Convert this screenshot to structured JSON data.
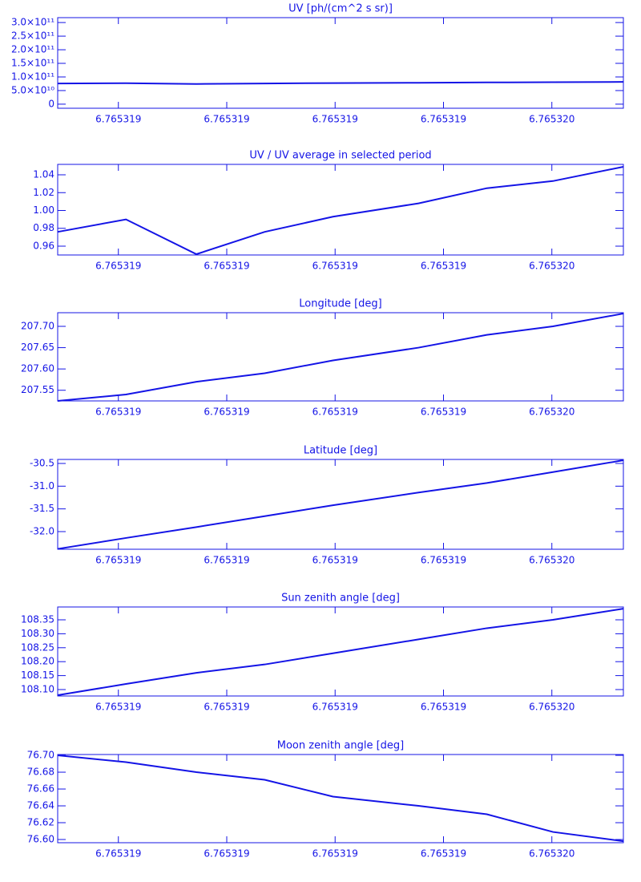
{
  "chart_data": [
    {
      "type": "line",
      "title": "UV [ph/(cm^2 s sr)]",
      "color": "#1414e6",
      "x": [
        6.765319044,
        6.765319107,
        6.765319172,
        6.765319235,
        6.765319298,
        6.765319377,
        6.76531944,
        6.765319501,
        6.765319566
      ],
      "values": [
        76100000000,
        77200000000,
        74200000000,
        76100000000,
        77500000000,
        78600000000,
        80000000000,
        80600000000,
        81800000000
      ],
      "xlim": [
        6.765319044,
        6.765319566
      ],
      "xticks": [
        {
          "value": 6.7653191,
          "label": "6.765319"
        },
        {
          "value": 6.7653192,
          "label": "6.765319"
        },
        {
          "value": 6.7653193,
          "label": "6.765319"
        },
        {
          "value": 6.7653194,
          "label": "6.765319"
        },
        {
          "value": 6.7653195,
          "label": "6.765320"
        }
      ],
      "ylim": [
        -15000000000,
        318000000000
      ],
      "yticks": [
        0,
        {
          "value": 50000000000,
          "label": "5.0×10¹⁰"
        },
        {
          "value": 100000000000,
          "label": "1.0×10¹¹"
        },
        {
          "value": 150000000000,
          "label": "1.5×10¹¹"
        },
        {
          "value": 200000000000,
          "label": "2.0×10¹¹"
        },
        {
          "value": 250000000000,
          "label": "2.5×10¹¹"
        },
        {
          "value": 300000000000,
          "label": "3.0×10¹¹"
        }
      ]
    },
    {
      "type": "line",
      "title": "UV / UV average in selected period",
      "color": "#1414e6",
      "x": [
        6.765319044,
        6.765319107,
        6.765319172,
        6.765319235,
        6.765319298,
        6.765319377,
        6.76531944,
        6.765319501,
        6.765319566
      ],
      "values": [
        0.976,
        0.99,
        0.951,
        0.976,
        0.993,
        1.008,
        1.025,
        1.033,
        1.049
      ],
      "xlim": [
        6.765319044,
        6.765319566
      ],
      "xticks": [
        {
          "value": 6.7653191,
          "label": "6.765319"
        },
        {
          "value": 6.7653192,
          "label": "6.765319"
        },
        {
          "value": 6.7653193,
          "label": "6.765319"
        },
        {
          "value": 6.7653194,
          "label": "6.765319"
        },
        {
          "value": 6.7653195,
          "label": "6.765320"
        }
      ],
      "ylim": [
        0.9501,
        1.0517
      ],
      "yticks": [
        0.96,
        0.98,
        {
          "value": 1,
          "label": "1.00"
        },
        1.02,
        1.04
      ]
    },
    {
      "type": "line",
      "title": "Longitude [deg]",
      "color": "#1414e6",
      "x": [
        6.765319044,
        6.765319107,
        6.765319172,
        6.765319235,
        6.765319298,
        6.765319377,
        6.76531944,
        6.765319501,
        6.765319566
      ],
      "values": [
        207.525,
        207.54,
        207.57,
        207.59,
        207.62,
        207.65,
        207.68,
        207.7,
        207.73
      ],
      "xlim": [
        6.765319044,
        6.765319566
      ],
      "xticks": [
        {
          "value": 6.7653191,
          "label": "6.765319"
        },
        {
          "value": 6.7653192,
          "label": "6.765319"
        },
        {
          "value": 6.7653193,
          "label": "6.765319"
        },
        {
          "value": 6.7653194,
          "label": "6.765319"
        },
        {
          "value": 6.7653195,
          "label": "6.765320"
        }
      ],
      "ylim": [
        207.525,
        207.732
      ],
      "yticks": [
        207.55,
        {
          "value": 207.6,
          "label": "207.60"
        },
        207.65,
        {
          "value": 207.7,
          "label": "207.70"
        }
      ]
    },
    {
      "type": "line",
      "title": "Latitude [deg]",
      "color": "#1414e6",
      "x": [
        6.765319044,
        6.765319107,
        6.765319172,
        6.765319235,
        6.765319298,
        6.765319377,
        6.76531944,
        6.765319501,
        6.765319566
      ],
      "values": [
        -32.38,
        -32.14,
        -31.9,
        -31.66,
        -31.42,
        -31.14,
        -30.93,
        -30.69,
        -30.43
      ],
      "xlim": [
        6.765319044,
        6.765319566
      ],
      "xticks": [
        {
          "value": 6.7653191,
          "label": "6.765319"
        },
        {
          "value": 6.7653192,
          "label": "6.765319"
        },
        {
          "value": 6.7653193,
          "label": "6.765319"
        },
        {
          "value": 6.7653194,
          "label": "6.765319"
        },
        {
          "value": 6.7653195,
          "label": "6.765320"
        }
      ],
      "ylim": [
        -32.388,
        -30.412
      ],
      "yticks": [
        {
          "value": -32,
          "label": "-32.0"
        },
        -31.5,
        {
          "value": -31,
          "label": "-31.0"
        },
        -30.5
      ]
    },
    {
      "type": "line",
      "title": "Sun zenith angle [deg]",
      "color": "#1414e6",
      "x": [
        6.765319044,
        6.765319107,
        6.765319172,
        6.765319235,
        6.765319298,
        6.765319377,
        6.76531944,
        6.765319501,
        6.765319566
      ],
      "values": [
        108.08,
        108.12,
        108.16,
        108.19,
        108.23,
        108.28,
        108.32,
        108.35,
        108.39
      ],
      "xlim": [
        6.765319044,
        6.765319566
      ],
      "xticks": [
        {
          "value": 6.7653191,
          "label": "6.765319"
        },
        {
          "value": 6.7653192,
          "label": "6.765319"
        },
        {
          "value": 6.7653193,
          "label": "6.765319"
        },
        {
          "value": 6.7653194,
          "label": "6.765319"
        },
        {
          "value": 6.7653195,
          "label": "6.765320"
        }
      ],
      "ylim": [
        108.077,
        108.396
      ],
      "yticks": [
        {
          "value": 108.1,
          "label": "108.10"
        },
        108.15,
        {
          "value": 108.2,
          "label": "108.20"
        },
        108.25,
        {
          "value": 108.3,
          "label": "108.30"
        },
        108.35
      ]
    },
    {
      "type": "line",
      "title": "Moon zenith angle [deg]",
      "color": "#1414e6",
      "x": [
        6.765319044,
        6.765319107,
        6.765319172,
        6.765319235,
        6.765319298,
        6.765319377,
        6.76531944,
        6.765319501,
        6.765319566
      ],
      "values": [
        76.7,
        76.692,
        76.68,
        76.671,
        76.651,
        76.64,
        76.63,
        76.609,
        76.598
      ],
      "xlim": [
        6.765319044,
        6.765319566
      ],
      "xticks": [
        {
          "value": 6.7653191,
          "label": "6.765319"
        },
        {
          "value": 6.7653192,
          "label": "6.765319"
        },
        {
          "value": 6.7653193,
          "label": "6.765319"
        },
        {
          "value": 6.7653194,
          "label": "6.765319"
        },
        {
          "value": 6.7653195,
          "label": "6.765320"
        }
      ],
      "ylim": [
        76.5962,
        76.701
      ],
      "yticks": [
        {
          "value": 76.6,
          "label": "76.60"
        },
        76.62,
        76.64,
        76.66,
        76.68,
        {
          "value": 76.7,
          "label": "76.70"
        }
      ]
    }
  ]
}
